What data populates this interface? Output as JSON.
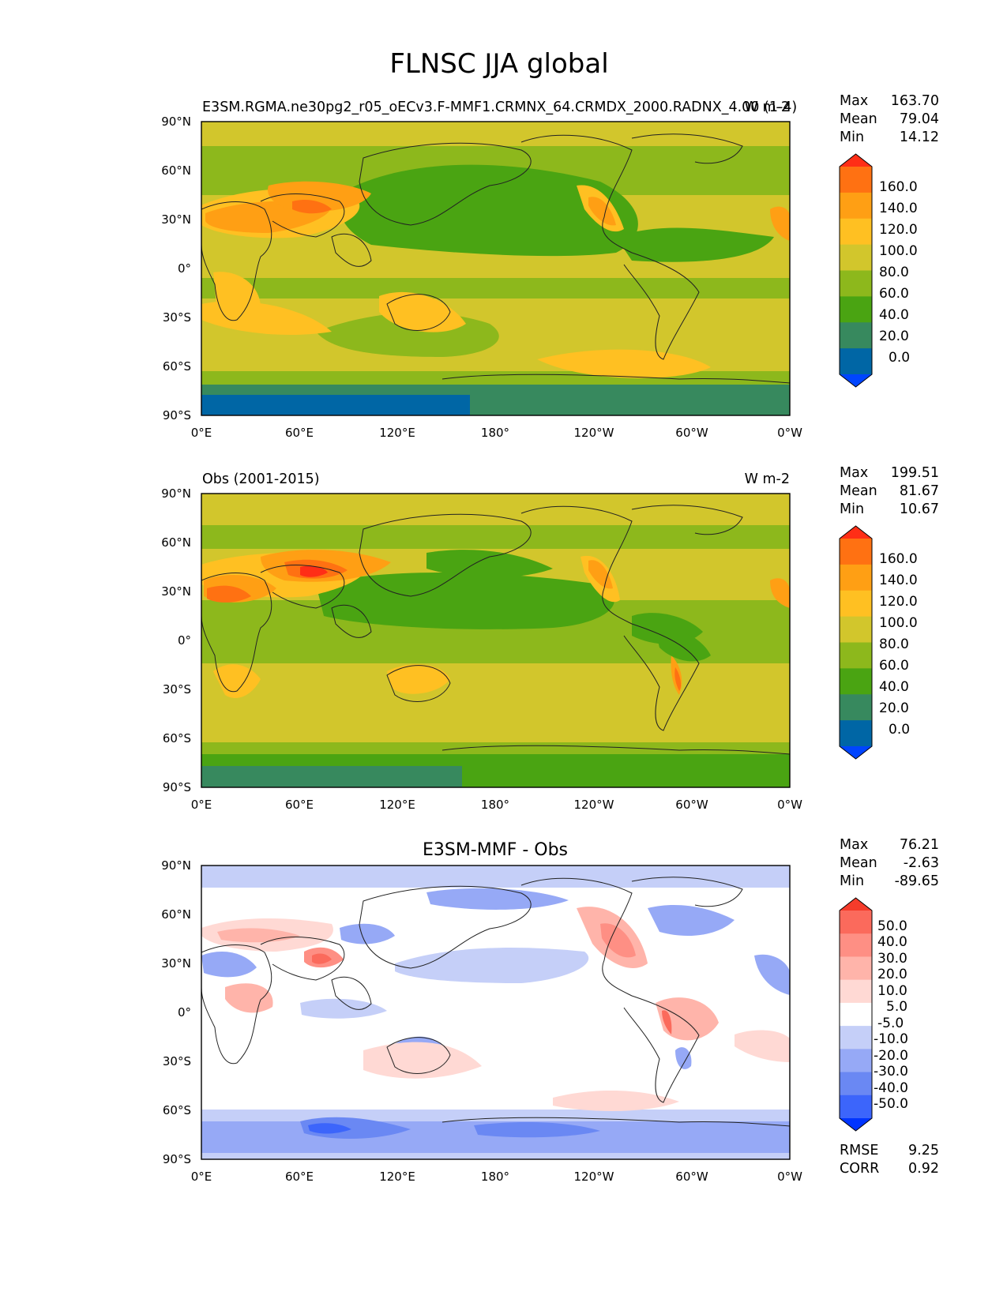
{
  "title": "FLNSC JJA global",
  "colors": {
    "abs": [
      "#0045ff",
      "#0066a5",
      "#37895e",
      "#4aa412",
      "#8db81c",
      "#d2c62c",
      "#ffc022",
      "#ff9f14",
      "#ff7112",
      "#ff2e16"
    ],
    "diff": [
      "#0034ff",
      "#3c65fb",
      "#6a88f3",
      "#96a9f6",
      "#c5cff8",
      "#ffffff",
      "#ffd9d4",
      "#ffb4aa",
      "#fe8f84",
      "#fb6a5c",
      "#f53c2b"
    ]
  },
  "chart_data": [
    {
      "type": "heatmap",
      "title": "",
      "left_label": "E3SM.RGMA.ne30pg2_r05_oECv3.F-MMF1.CRMNX_64.CRMDX_2000.RADNX_4.00 (1-4)",
      "units": "W m-2",
      "stats": [
        {
          "label": "Max",
          "value": "163.70"
        },
        {
          "label": "Mean",
          "value": "79.04"
        },
        {
          "label": "Min",
          "value": "14.12"
        }
      ],
      "x_ticks": [
        "0°E",
        "60°E",
        "120°E",
        "180°",
        "120°W",
        "60°W",
        "0°W"
      ],
      "y_ticks": [
        "90°N",
        "60°N",
        "30°N",
        "0°",
        "30°S",
        "60°S",
        "90°S"
      ],
      "colorbar_labels": [
        "160.0",
        "140.0",
        "120.0",
        "100.0",
        "80.0",
        "60.0",
        "40.0",
        "20.0",
        "0.0"
      ],
      "levels": [
        0,
        20,
        40,
        60,
        80,
        100,
        120,
        140,
        160
      ],
      "xlim": [
        0,
        360
      ],
      "ylim": [
        -90,
        90
      ]
    },
    {
      "type": "heatmap",
      "title": "",
      "left_label": "Obs (2001-2015)",
      "units": "W m-2",
      "stats": [
        {
          "label": "Max",
          "value": "199.51"
        },
        {
          "label": "Mean",
          "value": "81.67"
        },
        {
          "label": "Min",
          "value": "10.67"
        }
      ],
      "x_ticks": [
        "0°E",
        "60°E",
        "120°E",
        "180°",
        "120°W",
        "60°W",
        "0°W"
      ],
      "y_ticks": [
        "90°N",
        "60°N",
        "30°N",
        "0°",
        "30°S",
        "60°S",
        "90°S"
      ],
      "colorbar_labels": [
        "160.0",
        "140.0",
        "120.0",
        "100.0",
        "80.0",
        "60.0",
        "40.0",
        "20.0",
        "0.0"
      ],
      "levels": [
        0,
        20,
        40,
        60,
        80,
        100,
        120,
        140,
        160
      ],
      "xlim": [
        0,
        360
      ],
      "ylim": [
        -90,
        90
      ]
    },
    {
      "type": "heatmap",
      "title": "E3SM-MMF - Obs",
      "left_label": "",
      "units": "",
      "stats": [
        {
          "label": "Max",
          "value": "76.21"
        },
        {
          "label": "Mean",
          "value": "-2.63"
        },
        {
          "label": "Min",
          "value": "-89.65"
        }
      ],
      "x_ticks": [
        "0°E",
        "60°E",
        "120°E",
        "180°",
        "120°W",
        "60°W",
        "0°W"
      ],
      "y_ticks": [
        "90°N",
        "60°N",
        "30°N",
        "0°",
        "30°S",
        "60°S",
        "90°S"
      ],
      "colorbar_labels": [
        "50.0",
        "40.0",
        "30.0",
        "20.0",
        "10.0",
        "5.0",
        "-5.0",
        "-10.0",
        "-20.0",
        "-30.0",
        "-40.0",
        "-50.0"
      ],
      "levels": [
        -50,
        -40,
        -30,
        -20,
        -10,
        -5,
        5,
        10,
        20,
        30,
        40,
        50
      ],
      "metrics": [
        {
          "label": "RMSE",
          "value": "9.25"
        },
        {
          "label": "CORR",
          "value": "0.92"
        }
      ],
      "xlim": [
        0,
        360
      ],
      "ylim": [
        -90,
        90
      ]
    }
  ]
}
